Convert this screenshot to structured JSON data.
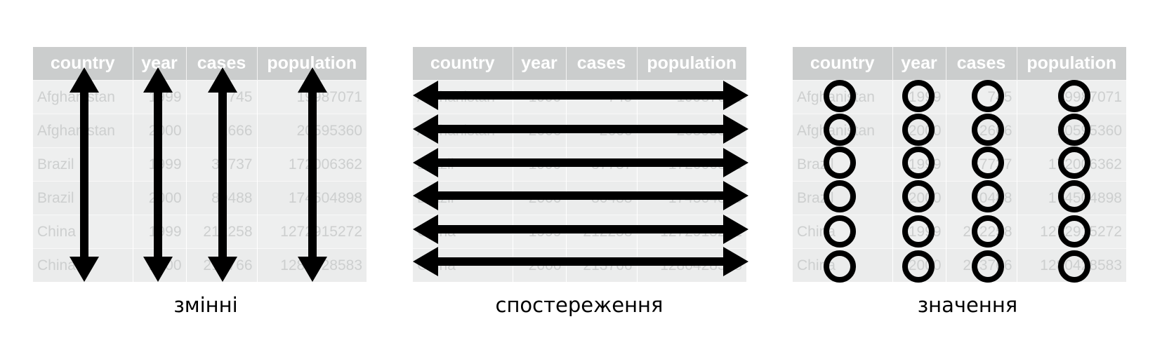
{
  "table": {
    "headers": [
      "country",
      "year",
      "cases",
      "population"
    ],
    "rows": [
      [
        "Afghanistan",
        "1999",
        "745",
        "19987071"
      ],
      [
        "Afghanistan",
        "2000",
        "2666",
        "20595360"
      ],
      [
        "Brazil",
        "1999",
        "37737",
        "172006362"
      ],
      [
        "Brazil",
        "2000",
        "80488",
        "174504898"
      ],
      [
        "China",
        "1999",
        "212258",
        "1272915272"
      ],
      [
        "China",
        "2000",
        "213766",
        "1280428583"
      ]
    ]
  },
  "panels": [
    {
      "caption": "змінні",
      "marker": "vertical-double-arrow"
    },
    {
      "caption": "спостереження",
      "marker": "horizontal-double-arrow"
    },
    {
      "caption": "значення",
      "marker": "circle"
    }
  ]
}
